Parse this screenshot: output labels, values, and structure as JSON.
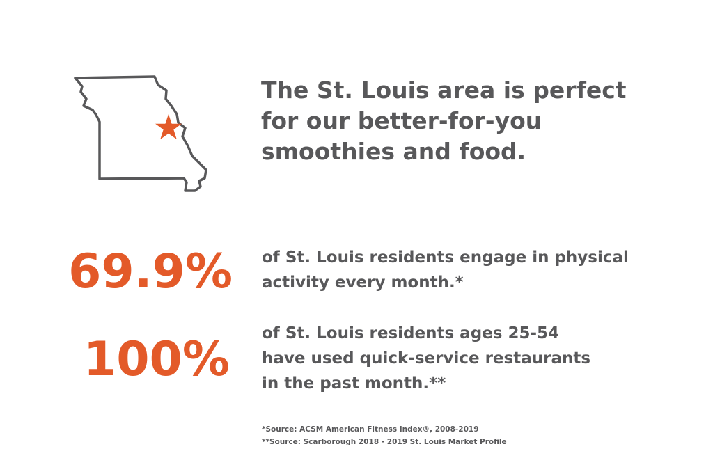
{
  "colors": {
    "accent": "#e35a29",
    "text": "#58585a",
    "background": "#ffffff"
  },
  "map": {
    "icon": "missouri-map-outline-icon",
    "marker_icon": "star-icon"
  },
  "headline": {
    "lines": [
      "The St. Louis area is perfect",
      "for our better-for-you",
      "smoothies and food."
    ]
  },
  "stats": [
    {
      "value": "69.9%",
      "lines": [
        "of St. Louis residents engage in physical",
        "activity every month.*"
      ]
    },
    {
      "value": "100%",
      "lines": [
        "of St. Louis residents ages 25-54",
        "have used quick-service restaurants",
        "in the past month.**"
      ]
    }
  ],
  "sources": [
    "*Source: ACSM American Fitness Index®, 2008-2019",
    "**Source: Scarborough 2018 - 2019 St. Louis Market Profile"
  ]
}
